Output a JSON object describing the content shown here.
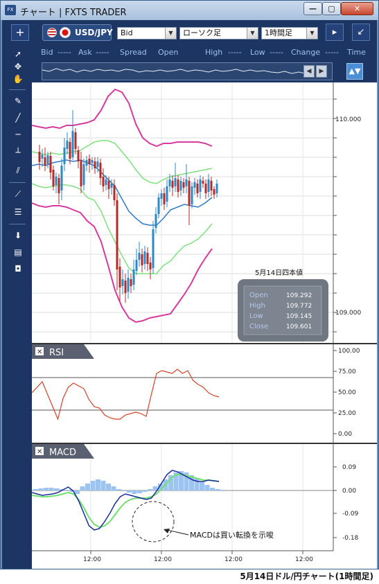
{
  "window": {
    "icon_text": "FX",
    "title": "チャート | FXTS TRADER",
    "min_glyph": "—",
    "max_glyph": "▢",
    "close_glyph": "✕"
  },
  "toolbar": {
    "add_glyph": "+",
    "pair": "USD/JPY",
    "price_type": "Bid",
    "chart_type": "ローソク足",
    "timeframe": "1時間足",
    "right_btn1": "▸",
    "right_btn2": "↙"
  },
  "rate_header": [
    "Bid",
    "-----",
    "Ask",
    "-----",
    "Spread",
    "Open",
    "High",
    "-----",
    "Low",
    "-----",
    "Change",
    "-----",
    "Time"
  ],
  "nav": {
    "prev": "◀",
    "next": "▶",
    "auto": "▲▼"
  },
  "sidebar_icons": [
    "cursor-icon",
    "crosshair-icon",
    "hand-icon",
    "pen-icon",
    "trendline-icon",
    "horizontal-line-icon",
    "vertical-line-icon",
    "channel-icon",
    "fan-icon",
    "fibonacci-icon",
    "download-icon",
    "list-icon",
    "camera-icon"
  ],
  "sidebar_glyphs": [
    "➚",
    "✥",
    "✋",
    "✎",
    "╱",
    "─",
    "┴",
    "⫽",
    "⟋",
    "☰",
    "⬇",
    "▤",
    "◘"
  ],
  "ohlc_box": {
    "title": "5月14日四本値",
    "rows": [
      {
        "label": "Open",
        "value": "109.292"
      },
      {
        "label": "High",
        "value": "109.772"
      },
      {
        "label": "Low",
        "value": "109.145"
      },
      {
        "label": "Close",
        "value": "109.601"
      }
    ]
  },
  "price_axis": {
    "labels": [
      "110.000",
      "109.000"
    ]
  },
  "rsi_panel": {
    "title": "RSI",
    "close_glyph": "✕",
    "axis": [
      "100.00",
      "75.00",
      "50.00",
      "25.00",
      "0.00"
    ]
  },
  "macd_panel": {
    "title": "MACD",
    "close_glyph": "✕",
    "axis": [
      "0.09",
      "0.00",
      "-0.09",
      "-0.18"
    ],
    "annotation": "MACDは買い転換を示唆"
  },
  "time_axis": [
    "12:00",
    "12:00",
    "12:00",
    "12:00"
  ],
  "caption": "5月14日ドル/円チャート(1時間足)",
  "colors": {
    "frame_dark": "#1c3563",
    "candle_up": "#2b8ac3",
    "candle_down": "#b72a2a",
    "bollinger_outer": "#d63a9c",
    "bollinger_inner": "#7fe07f",
    "moving_average": "#2e79c6",
    "rsi_line": "#d3412b",
    "macd_line": "#1a2b9c",
    "signal_line": "#6fe06f",
    "histogram": "#9cc4f2"
  }
}
